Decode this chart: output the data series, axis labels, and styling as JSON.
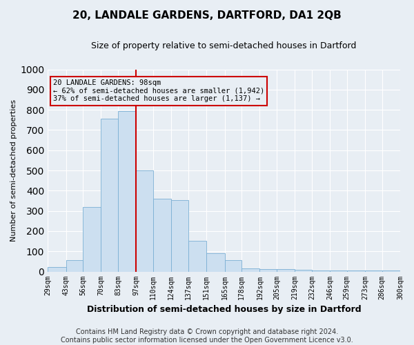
{
  "title": "20, LANDALE GARDENS, DARTFORD, DA1 2QB",
  "subtitle": "Size of property relative to semi-detached houses in Dartford",
  "xlabel": "Distribution of semi-detached houses by size in Dartford",
  "ylabel": "Number of semi-detached properties",
  "footer_line1": "Contains HM Land Registry data © Crown copyright and database right 2024.",
  "footer_line2": "Contains public sector information licensed under the Open Government Licence v3.0.",
  "annotation_line1": "20 LANDALE GARDENS: 98sqm",
  "annotation_line2": "← 62% of semi-detached houses are smaller (1,942)",
  "annotation_line3": "37% of semi-detached houses are larger (1,137) →",
  "property_size": 98,
  "bin_edges": [
    29,
    43,
    56,
    70,
    83,
    97,
    110,
    124,
    137,
    151,
    165,
    178,
    192,
    205,
    219,
    232,
    246,
    259,
    273,
    286,
    300
  ],
  "bar_heights": [
    22,
    55,
    320,
    755,
    795,
    500,
    360,
    355,
    152,
    90,
    57,
    15,
    13,
    11,
    8,
    5,
    5,
    5,
    5,
    7
  ],
  "bar_color": "#ccdff0",
  "bar_edge_color": "#7aafd4",
  "vline_color": "#cc0000",
  "vline_x": 97,
  "ylim": [
    0,
    1000
  ],
  "yticks": [
    0,
    100,
    200,
    300,
    400,
    500,
    600,
    700,
    800,
    900,
    1000
  ],
  "tick_labels": [
    "29sqm",
    "43sqm",
    "56sqm",
    "70sqm",
    "83sqm",
    "97sqm",
    "110sqm",
    "124sqm",
    "137sqm",
    "151sqm",
    "165sqm",
    "178sqm",
    "192sqm",
    "205sqm",
    "219sqm",
    "232sqm",
    "246sqm",
    "259sqm",
    "273sqm",
    "286sqm",
    "300sqm"
  ],
  "bg_color": "#e8eef4",
  "plot_bg_color": "#e8eef4",
  "grid_color": "#ffffff",
  "annotation_box_color": "#cc0000",
  "title_fontsize": 11,
  "subtitle_fontsize": 9,
  "ylabel_fontsize": 8,
  "xlabel_fontsize": 9,
  "tick_fontsize": 7,
  "footer_fontsize": 7
}
